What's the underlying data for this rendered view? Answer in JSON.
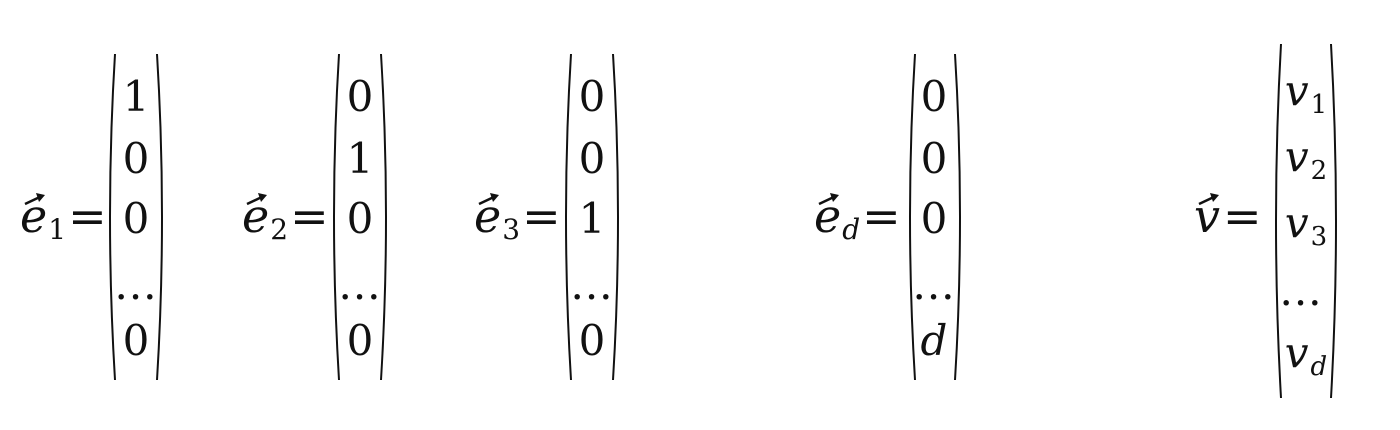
{
  "vectors": [
    {
      "letter": "e",
      "subscript": "1",
      "equals": "=",
      "entries": [
        "1",
        "0",
        "0",
        "...",
        "0"
      ]
    },
    {
      "letter": "e",
      "subscript": "2",
      "equals": "=",
      "entries": [
        "0",
        "1",
        "0",
        "...",
        "0"
      ]
    },
    {
      "letter": "e",
      "subscript": "3",
      "equals": "=",
      "entries": [
        "0",
        "0",
        "1",
        "...",
        "0"
      ]
    },
    {
      "letter": "e",
      "subscript": "d",
      "equals": "=",
      "entries": [
        "0",
        "0",
        "0",
        "...",
        "d"
      ]
    },
    {
      "letter": "v",
      "subscript": "",
      "equals": "=",
      "entries": [
        {
          "base": "v",
          "sub": "1"
        },
        {
          "base": "v",
          "sub": "2"
        },
        {
          "base": "v",
          "sub": "3"
        },
        {
          "base": "...",
          "sub": ""
        },
        {
          "base": "v",
          "sub": "d"
        }
      ]
    }
  ]
}
